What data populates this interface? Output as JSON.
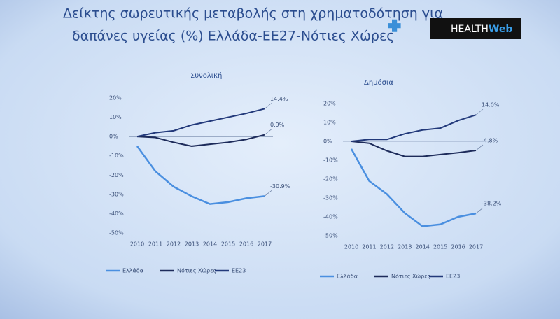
{
  "title": [
    "Δείκτης σωρευτικής μεταβολής στη χρηματοδότηση για",
    "δαπάνες υγείας (%) Ελλάδα-ΕΕ27-Νότιες Χώρες"
  ],
  "logo": [
    "HEALTH",
    "Web"
  ],
  "chart_data": [
    {
      "type": "line",
      "title": "Συνολική",
      "categories": [
        "2010",
        "2011",
        "2012",
        "2013",
        "2014",
        "2015",
        "2016",
        "2017"
      ],
      "ylim": [
        -50,
        20
      ],
      "yticks": [
        {
          "value": 20,
          "label": "20%"
        },
        {
          "value": 10,
          "label": "10%"
        },
        {
          "value": 0,
          "label": "0%"
        },
        {
          "value": -10,
          "label": "-10%"
        },
        {
          "value": -20,
          "label": "-20%"
        },
        {
          "value": -30,
          "label": "-30%"
        },
        {
          "value": -40,
          "label": "-40%"
        },
        {
          "value": -50,
          "label": "-50%"
        }
      ],
      "series": [
        {
          "name": "Ελλάδα",
          "color": "#4a8fe0",
          "values": [
            -5,
            -18,
            -26,
            -31,
            -35,
            -34,
            -32,
            -30.9
          ],
          "value_labels": [
            null,
            null,
            null,
            null,
            null,
            null,
            null,
            "-30.9%"
          ]
        },
        {
          "name": "Νότιες Χώρες",
          "color": "#1d2b5a",
          "values": [
            0,
            -0.5,
            -3,
            -5,
            -4,
            -3,
            -1.5,
            0.9
          ],
          "value_labels": [
            null,
            null,
            null,
            null,
            null,
            null,
            null,
            "0.9%"
          ]
        },
        {
          "name": "ΕΕ23",
          "color": "#22397a",
          "values": [
            0,
            2,
            3,
            6,
            8,
            10,
            12,
            14.4
          ],
          "value_labels": [
            null,
            null,
            null,
            null,
            null,
            null,
            null,
            "14.4%"
          ]
        }
      ]
    },
    {
      "type": "line",
      "title": "Δημόσια",
      "categories": [
        "2010",
        "2011",
        "2012",
        "2013",
        "2014",
        "2015",
        "2016",
        "2017"
      ],
      "ylim": [
        -50,
        20
      ],
      "yticks": [
        {
          "value": 20,
          "label": "20%"
        },
        {
          "value": 10,
          "label": "10%"
        },
        {
          "value": 0,
          "label": "0%"
        },
        {
          "value": -10,
          "label": "-10%"
        },
        {
          "value": -20,
          "label": "-20%"
        },
        {
          "value": -30,
          "label": "-30%"
        },
        {
          "value": -40,
          "label": "-40%"
        },
        {
          "value": -50,
          "label": "-50%"
        }
      ],
      "series": [
        {
          "name": "Ελλάδα",
          "color": "#4a8fe0",
          "values": [
            -4,
            -21,
            -28,
            -38,
            -45,
            -44,
            -40,
            -38.2
          ],
          "value_labels": [
            null,
            null,
            null,
            null,
            null,
            null,
            null,
            "-38.2%"
          ]
        },
        {
          "name": "Νότιες Χώρες",
          "color": "#1d2b5a",
          "values": [
            0,
            -1,
            -5,
            -8,
            -8,
            -7,
            -6,
            -4.8
          ],
          "value_labels": [
            null,
            null,
            null,
            null,
            null,
            null,
            null,
            "-4.8%"
          ]
        },
        {
          "name": "ΕΕ23",
          "color": "#22397a",
          "values": [
            0,
            1,
            1,
            4,
            6,
            7,
            11,
            14
          ],
          "value_labels": [
            null,
            null,
            null,
            null,
            null,
            null,
            null,
            "14.0%"
          ]
        }
      ]
    }
  ]
}
